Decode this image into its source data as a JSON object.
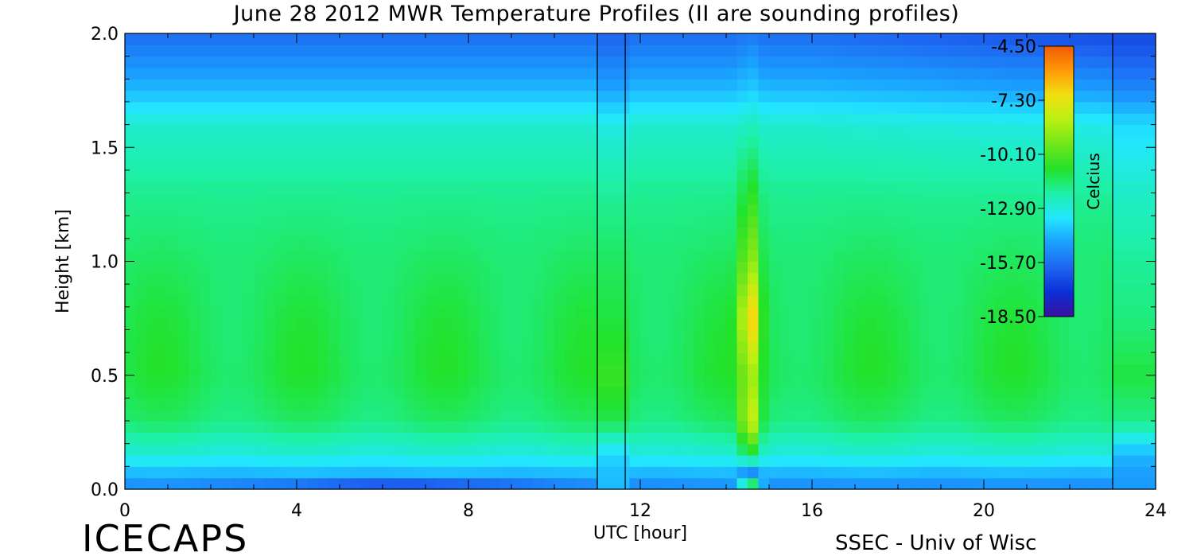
{
  "title": "June 28 2012 MWR Temperature Profiles (II are sounding profiles)",
  "footer": {
    "project": "ICECAPS",
    "credit": "SSEC - Univ of Wisc"
  },
  "colors": {
    "palette": [
      "#3b0fa0",
      "#0a2fd6",
      "#1e66f0",
      "#1aa0ff",
      "#22e6ff",
      "#1ef0a8",
      "#22e22a",
      "#6fe61a",
      "#b8f012",
      "#f0e010",
      "#ff9a08",
      "#f05a05"
    ],
    "sounding_line": "#000000"
  },
  "chart_data": {
    "type": "heatmap",
    "title": "June 28 2012 MWR Temperature Profiles (II are sounding profiles)",
    "xlabel": "UTC [hour]",
    "ylabel": "Height [km]",
    "xlim": [
      0,
      24
    ],
    "ylim": [
      0,
      2
    ],
    "x_ticks": [
      "0",
      "4",
      "8",
      "12",
      "16",
      "20",
      "24"
    ],
    "y_ticks": [
      "0.0",
      "0.5",
      "1.0",
      "1.5",
      "2.0"
    ],
    "sounding_times_utc": [
      11,
      11.65,
      23
    ],
    "colorbar": {
      "label": "Celcius",
      "range": [
        -18.5,
        -4.5
      ],
      "ticks": [
        "-4.50",
        "-7.30",
        "-10.10",
        "-12.90",
        "-15.70",
        "-18.50"
      ]
    },
    "profile_heights_km": [
      0.0,
      0.05,
      0.15,
      0.3,
      0.5,
      0.75,
      1.0,
      1.3,
      1.6,
      1.75,
      1.9,
      2.0
    ],
    "profile_temperature_c": {
      "typical": [
        -15.2,
        -14.6,
        -12.9,
        -11.6,
        -11.2,
        -11.3,
        -11.5,
        -11.9,
        -12.7,
        -14.2,
        -15.2,
        -15.8
      ],
      "warm_pulse_14_5h": [
        -6.0,
        -16.5,
        -11.0,
        -7.6,
        -8.6,
        -6.2,
        -8.8,
        -10.6,
        -12.4,
        -13.8,
        -14.8,
        -15.5
      ],
      "sounding_11_3h": [
        -14.2,
        -14.2,
        -13.7,
        -11.2,
        -10.5,
        -11.1,
        -11.4,
        -12.0,
        -13.0,
        -14.6,
        -15.5,
        -16.0
      ]
    },
    "grid": false,
    "legend": "right"
  }
}
